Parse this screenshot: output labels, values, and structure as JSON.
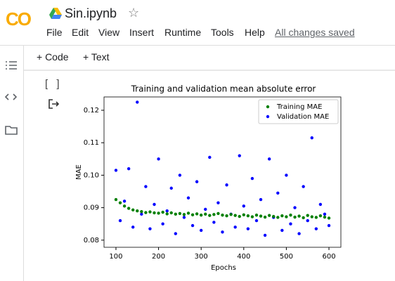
{
  "header": {
    "logo": "CO",
    "title": "Sin.ipynb",
    "menu": [
      "File",
      "Edit",
      "View",
      "Insert",
      "Runtime",
      "Tools",
      "Help"
    ],
    "status": "All changes saved"
  },
  "toolbar": {
    "buttons": [
      "+ Code",
      "+ Text"
    ]
  },
  "cell": {
    "prompt": "[ ]"
  },
  "chart_data": {
    "type": "scatter",
    "title": "Training and validation mean absolute error",
    "x_label": "Epochs",
    "y_label": "MAE",
    "x": [
      100,
      110,
      120,
      130,
      140,
      150,
      160,
      170,
      180,
      190,
      200,
      210,
      220,
      230,
      240,
      250,
      260,
      270,
      280,
      290,
      300,
      310,
      320,
      330,
      340,
      350,
      360,
      370,
      380,
      390,
      400,
      410,
      420,
      430,
      440,
      450,
      460,
      470,
      480,
      490,
      500,
      510,
      520,
      530,
      540,
      550,
      560,
      570,
      580,
      590,
      600
    ],
    "series": [
      {
        "name": "Training MAE",
        "color": "#008000",
        "values": [
          0.0925,
          0.0915,
          0.0905,
          0.0898,
          0.0893,
          0.089,
          0.0888,
          0.0885,
          0.0887,
          0.0884,
          0.0883,
          0.0886,
          0.0881,
          0.0884,
          0.088,
          0.0882,
          0.0879,
          0.0883,
          0.0878,
          0.0881,
          0.0877,
          0.088,
          0.0876,
          0.0879,
          0.0882,
          0.0877,
          0.0875,
          0.0879,
          0.0876,
          0.0873,
          0.0878,
          0.0875,
          0.0872,
          0.0877,
          0.0874,
          0.0871,
          0.0876,
          0.0873,
          0.087,
          0.0875,
          0.0872,
          0.0877,
          0.0871,
          0.0874,
          0.0869,
          0.0876,
          0.0872,
          0.087,
          0.0875,
          0.0871,
          0.0868
        ]
      },
      {
        "name": "Validation MAE",
        "color": "#0000ff",
        "values": [
          0.1015,
          0.086,
          0.092,
          0.102,
          0.084,
          0.1225,
          0.088,
          0.0965,
          0.0835,
          0.091,
          0.105,
          0.085,
          0.089,
          0.096,
          0.082,
          0.1,
          0.087,
          0.093,
          0.0845,
          0.098,
          0.083,
          0.0895,
          0.1055,
          0.0855,
          0.0915,
          0.0825,
          0.097,
          0.088,
          0.084,
          0.106,
          0.0905,
          0.0835,
          0.099,
          0.086,
          0.0925,
          0.0815,
          0.105,
          0.087,
          0.0945,
          0.083,
          0.1,
          0.085,
          0.09,
          0.082,
          0.0965,
          0.086,
          0.1115,
          0.0835,
          0.091,
          0.088,
          0.0845
        ]
      }
    ],
    "xlim": [
      72,
      628
    ],
    "xticks": [
      100,
      200,
      300,
      400,
      500,
      600
    ],
    "ylim": [
      0.0778,
      0.1241
    ],
    "yticks": [
      0.08,
      0.09,
      {
        "value": 0.1,
        "label": "0.10"
      },
      0.11,
      0.12
    ],
    "legend": "upper right"
  }
}
